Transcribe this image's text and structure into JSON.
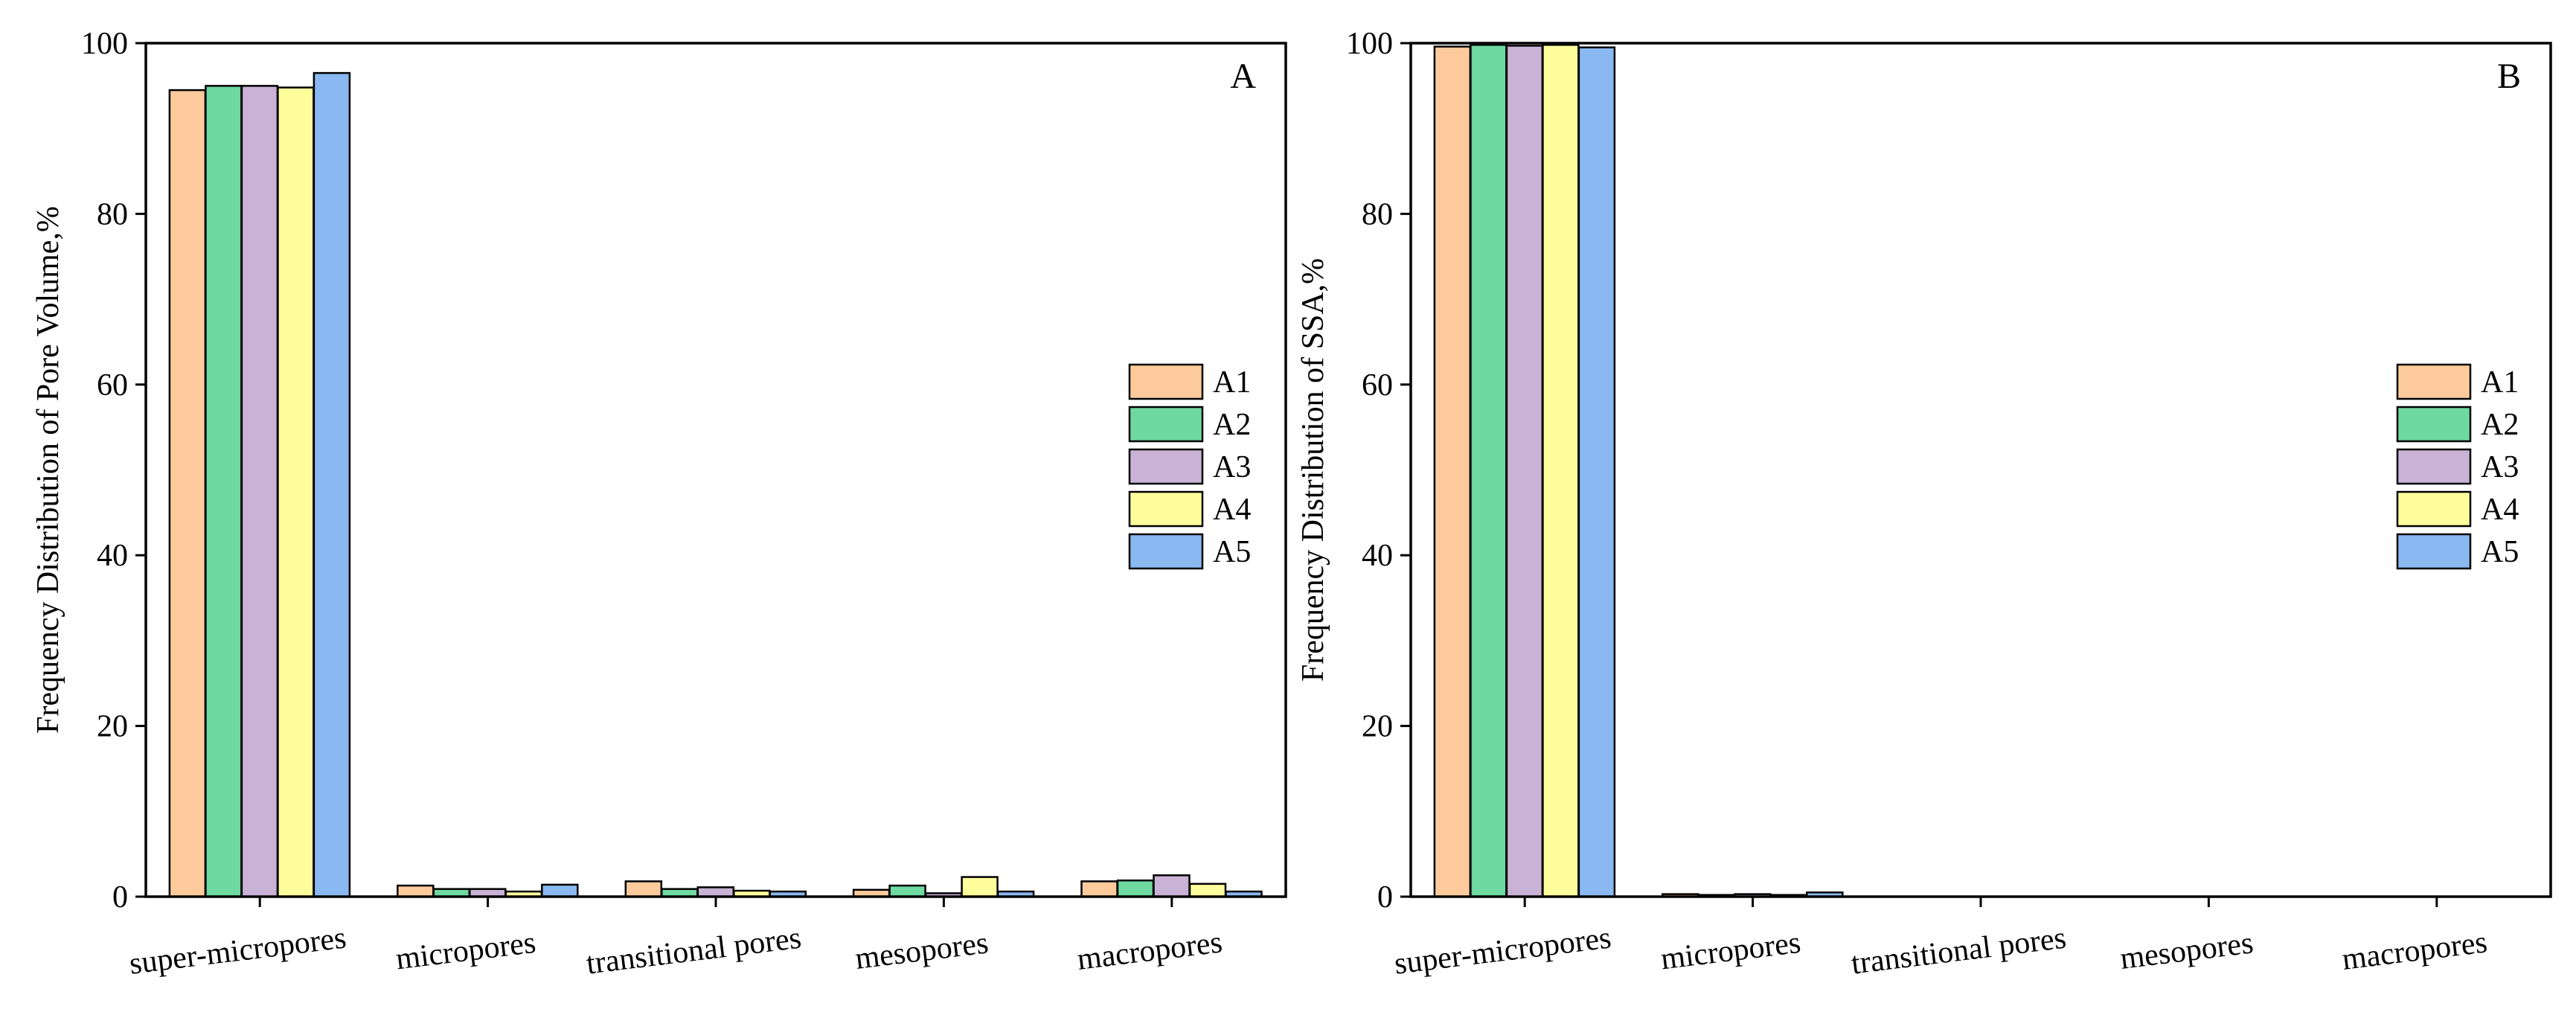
{
  "chart_data": [
    {
      "type": "bar",
      "panel_label": "A",
      "title": "",
      "xlabel": "",
      "ylabel": "Frequency Distribution of Pore Volume,%",
      "ylim": [
        0,
        100
      ],
      "yticks": [
        "0",
        "20",
        "40",
        "60",
        "80",
        "100"
      ],
      "grid": false,
      "legend_position": "right-middle",
      "categories": [
        "super-micropores",
        "micropores",
        "transitional pores",
        "mesopores",
        "macropores"
      ],
      "series": [
        {
          "name": "A1",
          "color": "#FDCB9B",
          "values": [
            94.5,
            1.3,
            1.8,
            0.8,
            1.8
          ]
        },
        {
          "name": "A2",
          "color": "#6ED9A0",
          "values": [
            95.0,
            0.9,
            0.9,
            1.3,
            1.9
          ]
        },
        {
          "name": "A3",
          "color": "#C9B2D6",
          "values": [
            95.0,
            0.9,
            1.1,
            0.4,
            2.5
          ]
        },
        {
          "name": "A4",
          "color": "#FDFD9C",
          "values": [
            94.8,
            0.6,
            0.7,
            2.3,
            1.5
          ]
        },
        {
          "name": "A5",
          "color": "#8AB8F0",
          "values": [
            96.5,
            1.4,
            0.6,
            0.6,
            0.6
          ]
        }
      ]
    },
    {
      "type": "bar",
      "panel_label": "B",
      "title": "",
      "xlabel": "",
      "ylabel": "Frequency Distribution of SSA,%",
      "ylim": [
        0,
        100
      ],
      "yticks": [
        "0",
        "20",
        "40",
        "60",
        "80",
        "100"
      ],
      "grid": false,
      "legend_position": "right-middle",
      "categories": [
        "super-micropores",
        "micropores",
        "transitional pores",
        "mesopores",
        "macropores"
      ],
      "series": [
        {
          "name": "A1",
          "color": "#FDCB9B",
          "values": [
            99.6,
            0.3,
            0.02,
            0.01,
            0.0
          ]
        },
        {
          "name": "A2",
          "color": "#6ED9A0",
          "values": [
            99.8,
            0.2,
            0.01,
            0.01,
            0.0
          ]
        },
        {
          "name": "A3",
          "color": "#C9B2D6",
          "values": [
            99.7,
            0.3,
            0.02,
            0.0,
            0.0
          ]
        },
        {
          "name": "A4",
          "color": "#FDFD9C",
          "values": [
            99.8,
            0.2,
            0.01,
            0.01,
            0.0
          ]
        },
        {
          "name": "A5",
          "color": "#8AB8F0",
          "values": [
            99.5,
            0.5,
            0.01,
            0.0,
            0.0
          ]
        }
      ]
    }
  ]
}
